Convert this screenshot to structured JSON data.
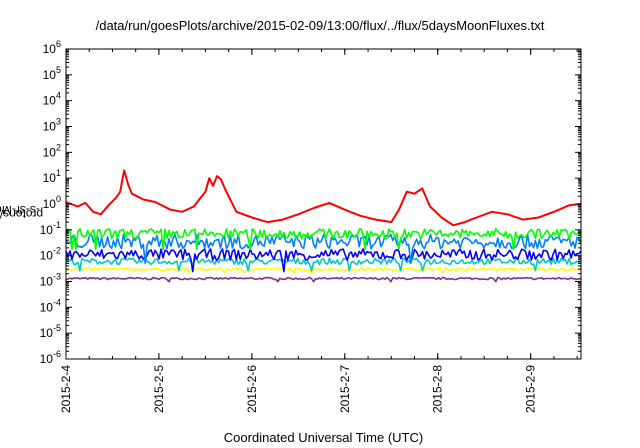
{
  "chart_data": {
    "type": "line",
    "title": "/data/run/goesPlots/archive/2015-02-09/13:00/flux/../flux/5daysMoonFluxes.txt",
    "xlabel": "Coordinated Universal Time (UTC)",
    "ylabel": {
      "prefix": "protons/cm",
      "sup": "2",
      "suffix": "-s-sr-MeV"
    },
    "y_scale": "log",
    "ylim": [
      1e-06,
      1000000.0
    ],
    "y_ticks": [
      {
        "value": 1e-06,
        "base": "10",
        "exp": "-6"
      },
      {
        "value": 1e-05,
        "base": "10",
        "exp": "-5"
      },
      {
        "value": 0.0001,
        "base": "10",
        "exp": "-4"
      },
      {
        "value": 0.001,
        "base": "10",
        "exp": "-3"
      },
      {
        "value": 0.01,
        "base": "10",
        "exp": "-2"
      },
      {
        "value": 0.1,
        "base": "10",
        "exp": "-1"
      },
      {
        "value": 1,
        "base": "10",
        "exp": "0"
      },
      {
        "value": 10.0,
        "base": "10",
        "exp": "1"
      },
      {
        "value": 100.0,
        "base": "10",
        "exp": "2"
      },
      {
        "value": 1000.0,
        "base": "10",
        "exp": "3"
      },
      {
        "value": 10000.0,
        "base": "10",
        "exp": "4"
      },
      {
        "value": 100000.0,
        "base": "10",
        "exp": "5"
      },
      {
        "value": 1000000.0,
        "base": "10",
        "exp": "6"
      }
    ],
    "xlim": [
      "2015-02-04 00:00",
      "2015-02-09 13:00"
    ],
    "x_ticks": [
      {
        "date": "2015-02-04",
        "label": "2015-2-4"
      },
      {
        "date": "2015-02-05",
        "label": "2015-2-5"
      },
      {
        "date": "2015-02-06",
        "label": "2015-2-6"
      },
      {
        "date": "2015-02-07",
        "label": "2015-2-7"
      },
      {
        "date": "2015-02-08",
        "label": "2015-2-8"
      },
      {
        "date": "2015-02-09",
        "label": "2015-2-9"
      }
    ],
    "grid": false,
    "legend": "none",
    "series": [
      {
        "color": "#ff0000",
        "x": [
          "2015-02-04 00:00",
          "2015-02-04 03:00",
          "2015-02-04 05:00",
          "2015-02-04 07:00",
          "2015-02-04 09:00",
          "2015-02-04 11:00",
          "2015-02-04 13:00",
          "2015-02-04 14:00",
          "2015-02-04 15:00",
          "2015-02-04 16:00",
          "2015-02-04 17:00",
          "2015-02-04 20:00",
          "2015-02-04 23:00",
          "2015-02-05 03:00",
          "2015-02-05 06:00",
          "2015-02-05 09:00",
          "2015-02-05 12:00",
          "2015-02-05 13:00",
          "2015-02-05 14:00",
          "2015-02-05 15:00",
          "2015-02-05 16:00",
          "2015-02-05 17:00",
          "2015-02-05 18:00",
          "2015-02-05 20:00",
          "2015-02-06 00:00",
          "2015-02-06 04:00",
          "2015-02-06 08:00",
          "2015-02-06 12:00",
          "2015-02-06 16:00",
          "2015-02-06 20:00",
          "2015-02-07 00:00",
          "2015-02-07 04:00",
          "2015-02-07 08:00",
          "2015-02-07 12:00",
          "2015-02-07 14:00",
          "2015-02-07 16:00",
          "2015-02-07 18:00",
          "2015-02-07 20:00",
          "2015-02-07 22:00",
          "2015-02-08 01:00",
          "2015-02-08 04:00",
          "2015-02-08 07:00",
          "2015-02-08 10:00",
          "2015-02-08 14:00",
          "2015-02-08 18:00",
          "2015-02-08 22:00",
          "2015-02-09 02:00",
          "2015-02-09 06:00",
          "2015-02-09 10:00",
          "2015-02-09 13:00"
        ],
        "y": [
          1.2,
          0.8,
          1.1,
          0.5,
          0.4,
          0.9,
          1.8,
          3,
          20,
          6,
          2.5,
          1.5,
          1.2,
          0.6,
          0.5,
          0.8,
          3,
          10,
          5,
          12,
          9,
          4,
          2,
          0.5,
          0.3,
          0.2,
          0.25,
          0.4,
          0.7,
          1.1,
          0.6,
          0.35,
          0.25,
          0.2,
          0.6,
          3,
          2.5,
          4,
          0.8,
          0.3,
          0.15,
          0.2,
          0.3,
          0.5,
          0.4,
          0.25,
          0.3,
          0.5,
          0.9,
          1
        ]
      },
      {
        "color": "#00ff00",
        "x": [
          "2015-02-04 00:00",
          "2015-02-09 13:00"
        ],
        "y": [
          0.07,
          0.07
        ],
        "noise": 0.2
      },
      {
        "color": "#0080ff",
        "x": [
          "2015-02-04 00:00",
          "2015-02-09 13:00"
        ],
        "y": [
          0.035,
          0.035
        ],
        "noise": 0.28
      },
      {
        "color": "#0000ff",
        "x": [
          "2015-02-04 00:00",
          "2015-02-09 13:00"
        ],
        "y": [
          0.011,
          0.011
        ],
        "noise": 0.22
      },
      {
        "color": "#00c8c8",
        "x": [
          "2015-02-04 00:00",
          "2015-02-09 13:00"
        ],
        "y": [
          0.006,
          0.006
        ],
        "noise": 0.12
      },
      {
        "color": "#ffff00",
        "x": [
          "2015-02-04 00:00",
          "2015-02-09 13:00"
        ],
        "y": [
          0.003,
          0.003
        ],
        "noise": 0.05
      },
      {
        "color": "#8b2c8b",
        "x": [
          "2015-02-04 00:00",
          "2015-02-09 13:00"
        ],
        "y": [
          0.0013,
          0.0013
        ],
        "noise": 0.04
      }
    ]
  }
}
